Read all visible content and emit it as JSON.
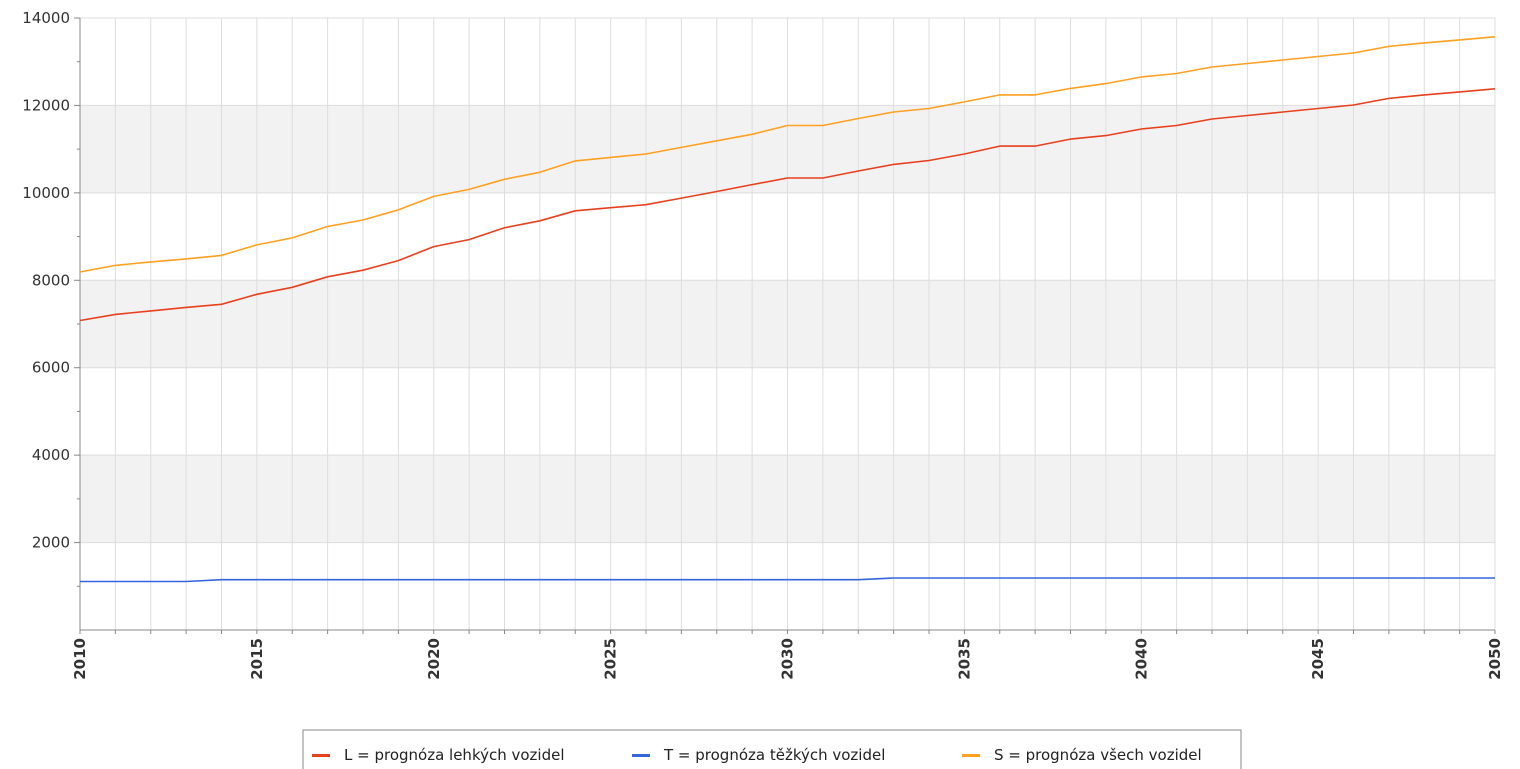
{
  "chart_data": {
    "type": "line",
    "x": [
      2010,
      2011,
      2012,
      2013,
      2014,
      2015,
      2016,
      2017,
      2018,
      2019,
      2020,
      2021,
      2022,
      2023,
      2024,
      2025,
      2026,
      2027,
      2028,
      2029,
      2030,
      2031,
      2032,
      2033,
      2034,
      2035,
      2036,
      2037,
      2038,
      2039,
      2040,
      2041,
      2042,
      2043,
      2044,
      2045,
      2046,
      2047,
      2048,
      2049,
      2050
    ],
    "x_tick_labels": [
      "2010",
      "2015",
      "2020",
      "2025",
      "2030",
      "2035",
      "2040",
      "2045",
      "2050"
    ],
    "x_ticks": [
      2010,
      2015,
      2020,
      2025,
      2030,
      2035,
      2040,
      2045,
      2050
    ],
    "y_tick_labels": [
      "2000",
      "4000",
      "6000",
      "8000",
      "10000",
      "12000",
      "14000"
    ],
    "y_ticks": [
      2000,
      4000,
      6000,
      8000,
      10000,
      12000,
      14000
    ],
    "xlim": [
      2010,
      2050
    ],
    "ylim": [
      0,
      14000
    ],
    "grid": true,
    "legend_position": "bottom-center",
    "series": [
      {
        "name": "L = prognóza lehkých vozidel",
        "color": "#e8401c",
        "values": [
          7080,
          7220,
          7300,
          7380,
          7450,
          7680,
          7840,
          8080,
          8230,
          8450,
          8770,
          8930,
          9200,
          9360,
          9590,
          9660,
          9730,
          9880,
          10030,
          10190,
          10340,
          10340,
          10500,
          10650,
          10740,
          10890,
          11070,
          11070,
          11230,
          11310,
          11460,
          11540,
          11690,
          11770,
          11850,
          11930,
          12010,
          12160,
          12240,
          12310,
          12380
        ]
      },
      {
        "name": "T = prognóza těžkých vozidel",
        "color": "#3366dd",
        "values": [
          1110,
          1110,
          1110,
          1110,
          1150,
          1150,
          1150,
          1150,
          1150,
          1150,
          1150,
          1150,
          1150,
          1150,
          1150,
          1150,
          1150,
          1150,
          1150,
          1150,
          1150,
          1150,
          1150,
          1190,
          1190,
          1190,
          1190,
          1190,
          1190,
          1190,
          1190,
          1190,
          1190,
          1190,
          1190,
          1190,
          1190,
          1190,
          1190,
          1190,
          1190
        ]
      },
      {
        "name": "S = prognóza všech vozidel",
        "color": "#ffa020",
        "values": [
          8190,
          8340,
          8420,
          8490,
          8570,
          8810,
          8970,
          9230,
          9380,
          9610,
          9920,
          10080,
          10310,
          10470,
          10730,
          10810,
          10890,
          11040,
          11190,
          11340,
          11540,
          11540,
          11700,
          11850,
          11930,
          12080,
          12240,
          12240,
          12390,
          12500,
          12650,
          12730,
          12880,
          12960,
          13040,
          13120,
          13200,
          13350,
          13430,
          13500,
          13570
        ]
      }
    ]
  }
}
